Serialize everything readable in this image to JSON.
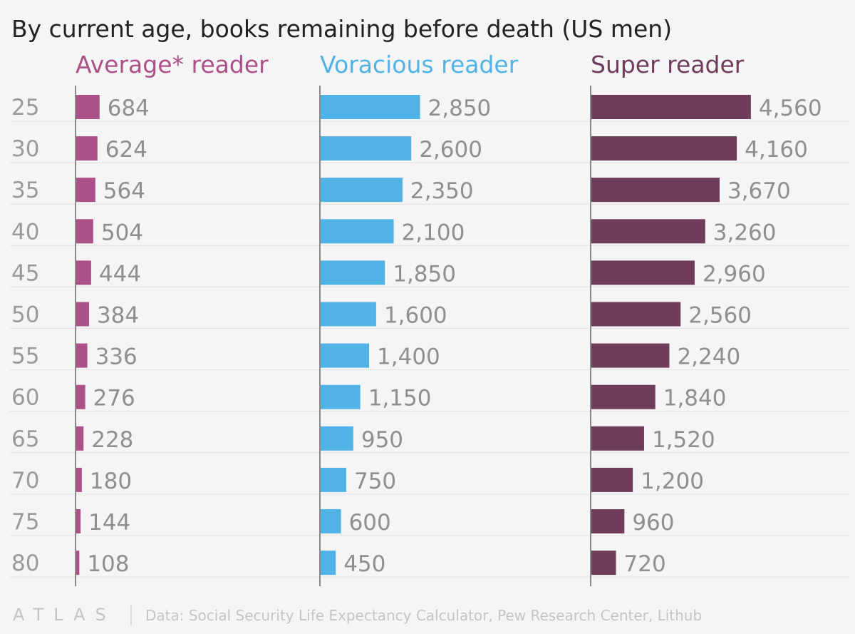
{
  "title": "By current age, books remaining before death (US men)",
  "footer": {
    "logo": "ATLAS",
    "source": "Data: Social Security Life Expectancy Calculator, Pew Research Center, Lithub"
  },
  "colors": {
    "average": "#ac5187",
    "voracious": "#51b2e5",
    "super": "#703c5c",
    "background": "#f5f5f5"
  },
  "chart_data": {
    "type": "bar",
    "orientation": "horizontal",
    "title": "By current age, books remaining before death (US men)",
    "categories": [
      "25",
      "30",
      "35",
      "40",
      "45",
      "50",
      "55",
      "60",
      "65",
      "70",
      "75",
      "80"
    ],
    "series": [
      {
        "name": "Average* reader",
        "color": "#ac5187",
        "values": [
          684,
          624,
          564,
          504,
          444,
          384,
          336,
          276,
          228,
          180,
          144,
          108
        ],
        "labels": [
          "684",
          "624",
          "564",
          "504",
          "444",
          "384",
          "336",
          "276",
          "228",
          "180",
          "144",
          "108"
        ]
      },
      {
        "name": "Voracious reader",
        "color": "#51b2e5",
        "values": [
          2850,
          2600,
          2350,
          2100,
          1850,
          1600,
          1400,
          1150,
          950,
          750,
          600,
          450
        ],
        "labels": [
          "2,850",
          "2,600",
          "2,350",
          "2,100",
          "1,850",
          "1,600",
          "1,400",
          "1,150",
          "950",
          "750",
          "600",
          "450"
        ]
      },
      {
        "name": "Super reader",
        "color": "#703c5c",
        "values": [
          4560,
          4160,
          3670,
          3260,
          2960,
          2560,
          2240,
          1840,
          1520,
          1200,
          960,
          720
        ],
        "labels": [
          "4,560",
          "4,160",
          "3,670",
          "3,260",
          "2,960",
          "2,560",
          "2,240",
          "1,840",
          "1,520",
          "1,200",
          "960",
          "720"
        ]
      }
    ],
    "xlabel": "",
    "ylabel": "",
    "grid": true
  }
}
